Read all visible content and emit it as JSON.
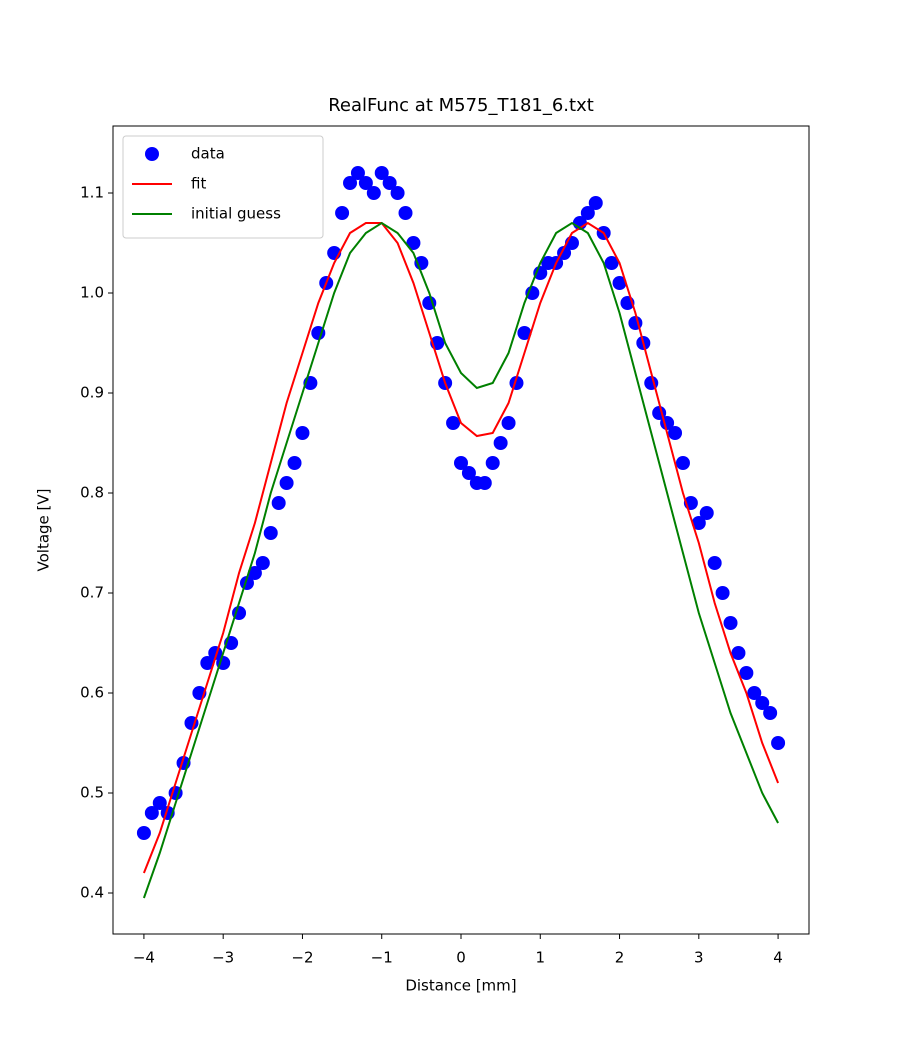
{
  "chart_data": {
    "type": "scatter",
    "title": "RealFunc at M575_T181_6.txt",
    "x_label": "Distance [mm]",
    "y_label": "Voltage [V]",
    "xlim": [
      -4.39,
      4.39
    ],
    "ylim": [
      0.359,
      1.167
    ],
    "xticks": [
      {
        "value": -4,
        "label": "−4"
      },
      {
        "value": -3,
        "label": "−3"
      },
      {
        "value": -2,
        "label": "−2"
      },
      {
        "value": -1,
        "label": "−1"
      },
      0,
      1,
      2,
      3,
      4
    ],
    "yticks": [
      0.4,
      0.5,
      0.6,
      0.7,
      0.8,
      0.9,
      {
        "value": 1,
        "label": "1.0"
      },
      1.1
    ],
    "legend": "upper left",
    "grid": false,
    "series": [
      {
        "name": "data",
        "type": "scatter",
        "color": "#0000ff",
        "x": [
          -4.0,
          -3.9,
          -3.8,
          -3.7,
          -3.6,
          -3.5,
          -3.4,
          -3.3,
          -3.2,
          -3.1,
          -3.0,
          -2.9,
          -2.8,
          -2.7,
          -2.6,
          -2.5,
          -2.4,
          -2.3,
          -2.2,
          -2.1,
          -2.0,
          -1.9,
          -1.8,
          -1.7,
          -1.6,
          -1.5,
          -1.4,
          -1.3,
          -1.2,
          -1.1,
          -1.0,
          -0.9,
          -0.8,
          -0.7,
          -0.6,
          -0.5,
          -0.4,
          -0.3,
          -0.2,
          -0.1,
          0.0,
          0.1,
          0.2,
          0.3,
          0.4,
          0.5,
          0.6,
          0.7,
          0.8,
          0.9,
          1.0,
          1.1,
          1.2,
          1.3,
          1.4,
          1.5,
          1.6,
          1.7,
          1.8,
          1.9,
          2.0,
          2.1,
          2.2,
          2.3,
          2.4,
          2.5,
          2.6,
          2.7,
          2.8,
          2.9,
          3.0,
          3.1,
          3.2,
          3.3,
          3.4,
          3.5,
          3.6,
          3.7,
          3.8,
          3.9,
          4.0
        ],
        "values": [
          0.46,
          0.48,
          0.49,
          0.48,
          0.5,
          0.53,
          0.57,
          0.6,
          0.63,
          0.64,
          0.63,
          0.65,
          0.68,
          0.71,
          0.72,
          0.73,
          0.76,
          0.79,
          0.81,
          0.83,
          0.86,
          0.91,
          0.96,
          1.01,
          1.04,
          1.08,
          1.11,
          1.12,
          1.11,
          1.1,
          1.12,
          1.11,
          1.1,
          1.08,
          1.05,
          1.03,
          0.99,
          0.95,
          0.91,
          0.87,
          0.83,
          0.82,
          0.81,
          0.81,
          0.83,
          0.85,
          0.87,
          0.91,
          0.96,
          1.0,
          1.02,
          1.03,
          1.03,
          1.04,
          1.05,
          1.07,
          1.08,
          1.09,
          1.06,
          1.03,
          1.01,
          0.99,
          0.97,
          0.95,
          0.91,
          0.88,
          0.87,
          0.86,
          0.83,
          0.79,
          0.77,
          0.78,
          0.73,
          0.7,
          0.67,
          0.64,
          0.62,
          0.6,
          0.59,
          0.58,
          0.55
        ]
      },
      {
        "name": "fit",
        "type": "line",
        "color": "#ff0000",
        "x": [
          -4.0,
          -3.8,
          -3.6,
          -3.4,
          -3.2,
          -3.0,
          -2.8,
          -2.6,
          -2.4,
          -2.2,
          -2.0,
          -1.8,
          -1.6,
          -1.4,
          -1.2,
          -1.0,
          -0.8,
          -0.6,
          -0.4,
          -0.2,
          0.0,
          0.2,
          0.4,
          0.6,
          0.8,
          1.0,
          1.2,
          1.4,
          1.6,
          1.8,
          2.0,
          2.2,
          2.4,
          2.6,
          2.8,
          3.0,
          3.2,
          3.4,
          3.6,
          3.8,
          4.0
        ],
        "values": [
          0.42,
          0.46,
          0.51,
          0.56,
          0.61,
          0.66,
          0.72,
          0.77,
          0.83,
          0.89,
          0.94,
          0.99,
          1.03,
          1.06,
          1.07,
          1.07,
          1.05,
          1.01,
          0.96,
          0.91,
          0.87,
          0.857,
          0.86,
          0.89,
          0.94,
          0.99,
          1.03,
          1.06,
          1.07,
          1.06,
          1.03,
          0.98,
          0.92,
          0.86,
          0.8,
          0.75,
          0.69,
          0.64,
          0.6,
          0.55,
          0.51
        ]
      },
      {
        "name": "initial guess",
        "type": "line",
        "color": "#008000",
        "x": [
          -4.0,
          -3.8,
          -3.6,
          -3.4,
          -3.2,
          -3.0,
          -2.8,
          -2.6,
          -2.4,
          -2.2,
          -2.0,
          -1.8,
          -1.6,
          -1.4,
          -1.2,
          -1.0,
          -0.8,
          -0.6,
          -0.4,
          -0.2,
          0.0,
          0.2,
          0.4,
          0.6,
          0.8,
          1.0,
          1.2,
          1.4,
          1.6,
          1.8,
          2.0,
          2.2,
          2.4,
          2.6,
          2.8,
          3.0,
          3.2,
          3.4,
          3.6,
          3.8,
          4.0
        ],
        "values": [
          0.395,
          0.44,
          0.49,
          0.54,
          0.59,
          0.64,
          0.69,
          0.74,
          0.8,
          0.85,
          0.9,
          0.95,
          1.0,
          1.04,
          1.06,
          1.07,
          1.06,
          1.04,
          1.0,
          0.95,
          0.92,
          0.905,
          0.91,
          0.94,
          0.99,
          1.03,
          1.06,
          1.07,
          1.06,
          1.03,
          0.98,
          0.92,
          0.86,
          0.8,
          0.74,
          0.68,
          0.63,
          0.58,
          0.54,
          0.5,
          0.47
        ]
      }
    ]
  }
}
